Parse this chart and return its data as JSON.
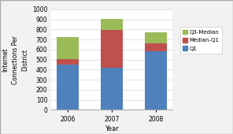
{
  "years": [
    "2006",
    "2007",
    "2008"
  ],
  "q1": [
    450,
    420,
    585
  ],
  "median_minus_q1": [
    55,
    375,
    80
  ],
  "q3_minus_median": [
    220,
    110,
    110
  ],
  "colors": {
    "q1": "#4F81BD",
    "median_q1": "#C0504D",
    "q3_median": "#9BBB59"
  },
  "ylabel": "Internet\nConnections Per\nDistrict",
  "xlabel": "Year",
  "ylim": [
    0,
    1000
  ],
  "yticks": [
    0,
    100,
    200,
    300,
    400,
    500,
    600,
    700,
    800,
    900,
    1000
  ],
  "legend_labels": [
    "Q3-Median",
    "Median-Q1",
    "Q1"
  ],
  "background_color": "#F2F2F2",
  "plot_bg_color": "#FFFFFF",
  "bar_width": 0.5
}
